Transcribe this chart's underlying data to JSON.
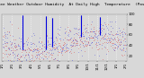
{
  "title": "Milwaukee Weather Outdoor Humidity  At Daily High  Temperature  (Past Year)",
  "background_color": "#d8d8d8",
  "plot_bg_color": "#d8d8d8",
  "n_points": 365,
  "y_min": 10,
  "y_max": 100,
  "blue_color": "#0000dd",
  "red_color": "#dd0000",
  "grid_color": "#ffffff",
  "tick_label_fontsize": 2.8,
  "title_fontsize": 3.2,
  "spike_positions": [
    60,
    128,
    148,
    232,
    288
  ],
  "spike_heights": [
    98,
    96,
    92,
    97,
    94
  ],
  "seed": 12345
}
